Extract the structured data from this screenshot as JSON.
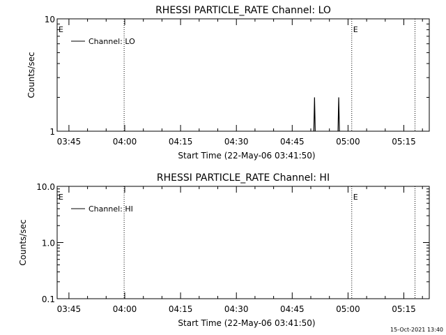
{
  "footer": {
    "timestamp": "15-Oct-2021 13:40"
  },
  "chart_data": [
    {
      "type": "line",
      "title": "RHESSI PARTICLE_RATE Channel: LO",
      "xlabel": "Start Time (22-May-06 03:41:50)",
      "ylabel": "Counts/sec",
      "yscale": "log",
      "ylim": [
        1,
        10
      ],
      "xlim": [
        "03:41:50",
        "05:21:50"
      ],
      "x_tick_labels": [
        "03:45",
        "04:00",
        "04:15",
        "04:30",
        "04:45",
        "05:00",
        "05:15"
      ],
      "y_tick_labels": [
        "1",
        "10"
      ],
      "legend": {
        "entries": [
          "Channel: LO"
        ],
        "placement": "top-left"
      },
      "grid": false,
      "event_markers": [
        {
          "time": "03:41:50",
          "label": "E",
          "style": "axis"
        },
        {
          "time": "03:59:50",
          "label": "",
          "style": "dotted"
        },
        {
          "time": "05:01:00",
          "label": "E",
          "style": "dotted"
        },
        {
          "time": "05:18:00",
          "label": "",
          "style": "dotted"
        }
      ],
      "series": [
        {
          "name": "Channel: LO",
          "spikes": [
            {
              "time": "04:51:00",
              "value": 2
            },
            {
              "time": "04:57:30",
              "value": 2
            }
          ]
        }
      ]
    },
    {
      "type": "line",
      "title": "RHESSI PARTICLE_RATE Channel: HI",
      "xlabel": "Start Time (22-May-06 03:41:50)",
      "ylabel": "Counts/sec",
      "yscale": "log",
      "ylim": [
        0.1,
        10
      ],
      "xlim": [
        "03:41:50",
        "05:21:50"
      ],
      "x_tick_labels": [
        "03:45",
        "04:00",
        "04:15",
        "04:30",
        "04:45",
        "05:00",
        "05:15"
      ],
      "y_tick_labels": [
        "0.1",
        "1.0",
        "10.0"
      ],
      "legend": {
        "entries": [
          "Channel: HI"
        ],
        "placement": "top-left"
      },
      "grid": false,
      "event_markers": [
        {
          "time": "03:41:50",
          "label": "E",
          "style": "axis"
        },
        {
          "time": "03:59:50",
          "label": "",
          "style": "dotted"
        },
        {
          "time": "05:01:00",
          "label": "E",
          "style": "dotted"
        },
        {
          "time": "05:18:00",
          "label": "",
          "style": "dotted"
        }
      ],
      "series": [
        {
          "name": "Channel: HI",
          "spikes": []
        }
      ]
    }
  ]
}
